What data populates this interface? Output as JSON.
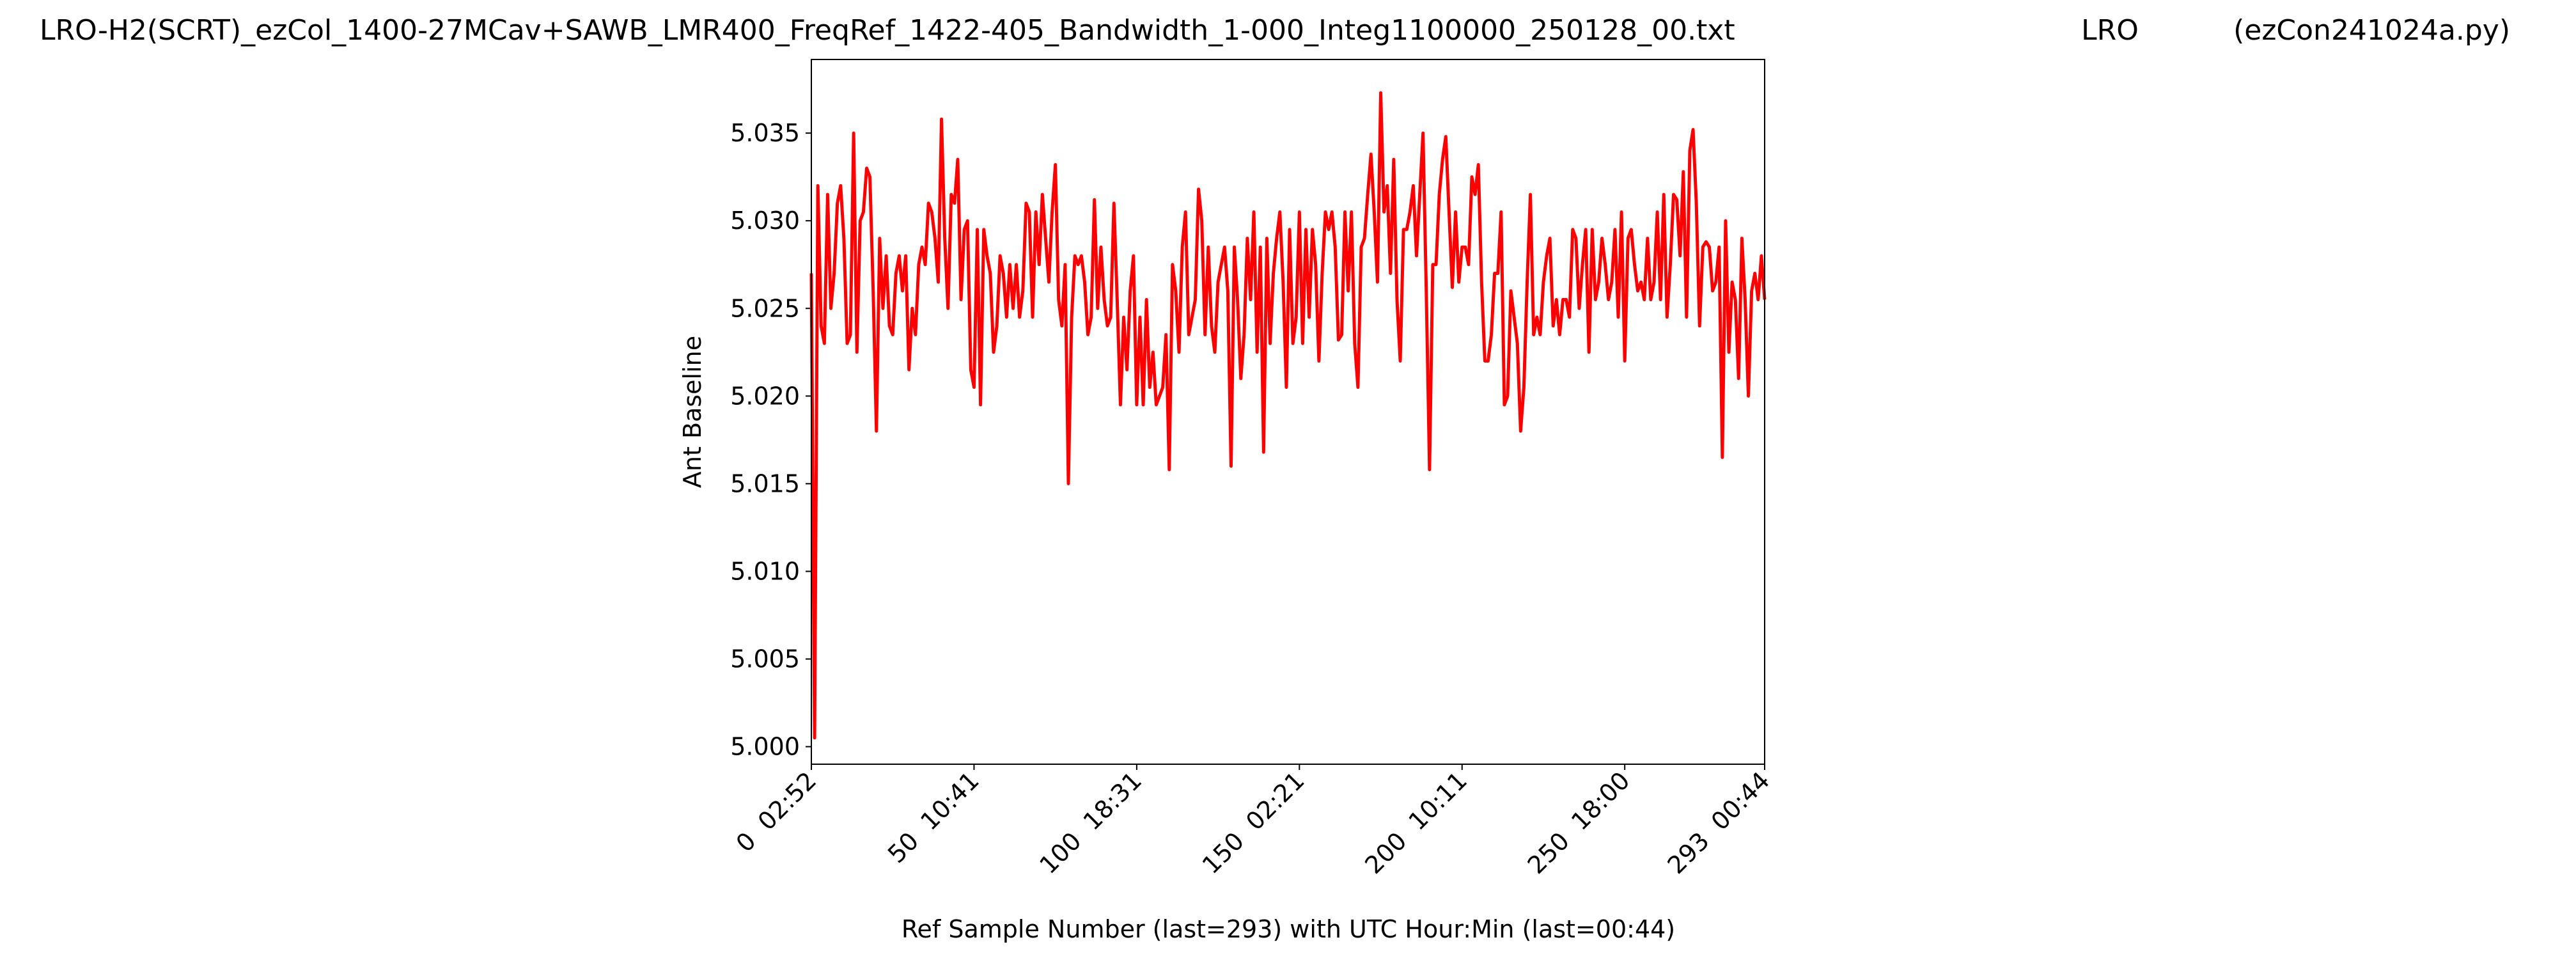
{
  "chart_data": {
    "type": "line",
    "title": "LRO-H2(SCRT)_ezCol_1400-27MCav+SAWB_LMR400_FreqRef_1422-405_Bandwidth_1-000_Integ1100000_250128_00.txt",
    "annotations": [
      "LRO",
      "(ezCon241024a.py)"
    ],
    "x_label": "Ref Sample Number (last=293) with UTC Hour:Min (last=00:44)",
    "y_label": "Ant Baseline",
    "xlim": [
      0,
      293
    ],
    "ylim": [
      4.999,
      5.0392
    ],
    "xticks": [
      {
        "value": 0,
        "label": "0  02:52"
      },
      {
        "value": 50,
        "label": "50  10:41"
      },
      {
        "value": 100,
        "label": "100  18:31"
      },
      {
        "value": 150,
        "label": "150  02:21"
      },
      {
        "value": 200,
        "label": "200  10:11"
      },
      {
        "value": 250,
        "label": "250  18:00"
      },
      {
        "value": 293,
        "label": "293  00:44"
      }
    ],
    "yticks": [
      {
        "value": 5,
        "label": "5.000"
      },
      5.005,
      {
        "value": 5.01,
        "label": "5.010"
      },
      5.015,
      {
        "value": 5.02,
        "label": "5.020"
      },
      5.025,
      {
        "value": 5.03,
        "label": "5.030"
      },
      5.035
    ],
    "grid": false,
    "series": [
      {
        "color": "#ff0000",
        "values": [
          5.027,
          5.0005,
          5.032,
          5.024,
          5.023,
          5.0315,
          5.025,
          5.027,
          5.031,
          5.032,
          5.029,
          5.023,
          5.0235,
          5.035,
          5.0225,
          5.03,
          5.0305,
          5.033,
          5.0325,
          5.026,
          5.018,
          5.029,
          5.025,
          5.028,
          5.024,
          5.0235,
          5.027,
          5.028,
          5.026,
          5.028,
          5.0215,
          5.025,
          5.0235,
          5.0275,
          5.0285,
          5.0275,
          5.031,
          5.0305,
          5.029,
          5.0265,
          5.0358,
          5.029,
          5.025,
          5.0315,
          5.031,
          5.0335,
          5.0255,
          5.0295,
          5.03,
          5.0215,
          5.0205,
          5.0295,
          5.0195,
          5.0295,
          5.028,
          5.027,
          5.0225,
          5.024,
          5.028,
          5.027,
          5.0245,
          5.0275,
          5.025,
          5.0275,
          5.0245,
          5.026,
          5.031,
          5.0305,
          5.0245,
          5.0305,
          5.0275,
          5.0315,
          5.029,
          5.0265,
          5.0305,
          5.0332,
          5.0255,
          5.024,
          5.0275,
          5.015,
          5.0245,
          5.028,
          5.0275,
          5.028,
          5.0265,
          5.0235,
          5.0245,
          5.0312,
          5.025,
          5.0285,
          5.0255,
          5.024,
          5.0245,
          5.031,
          5.0255,
          5.0195,
          5.0245,
          5.0215,
          5.026,
          5.028,
          5.0195,
          5.0245,
          5.0195,
          5.0255,
          5.0205,
          5.0225,
          5.0195,
          5.02,
          5.0205,
          5.0235,
          5.0158,
          5.0275,
          5.026,
          5.0225,
          5.0285,
          5.0305,
          5.0235,
          5.0245,
          5.0255,
          5.0318,
          5.03,
          5.0235,
          5.0285,
          5.024,
          5.0225,
          5.0265,
          5.0275,
          5.0285,
          5.026,
          5.016,
          5.0285,
          5.0255,
          5.021,
          5.0235,
          5.029,
          5.0255,
          5.0305,
          5.0225,
          5.0285,
          5.0168,
          5.029,
          5.023,
          5.027,
          5.029,
          5.0305,
          5.0265,
          5.0205,
          5.0295,
          5.023,
          5.0245,
          5.0305,
          5.023,
          5.0295,
          5.0245,
          5.0295,
          5.0275,
          5.022,
          5.027,
          5.0305,
          5.0295,
          5.0305,
          5.0285,
          5.0232,
          5.0235,
          5.0305,
          5.026,
          5.0305,
          5.023,
          5.0205,
          5.0285,
          5.029,
          5.0315,
          5.0338,
          5.0305,
          5.0265,
          5.0373,
          5.0305,
          5.032,
          5.027,
          5.0335,
          5.0255,
          5.022,
          5.0295,
          5.0295,
          5.0305,
          5.032,
          5.028,
          5.0315,
          5.035,
          5.026,
          5.0158,
          5.0275,
          5.0275,
          5.0315,
          5.0335,
          5.0348,
          5.0305,
          5.0262,
          5.0305,
          5.0265,
          5.0285,
          5.0285,
          5.0275,
          5.0325,
          5.0315,
          5.0332,
          5.0265,
          5.022,
          5.022,
          5.0235,
          5.027,
          5.027,
          5.0305,
          5.0195,
          5.02,
          5.026,
          5.0245,
          5.023,
          5.018,
          5.0205,
          5.0265,
          5.0315,
          5.0235,
          5.0245,
          5.0235,
          5.0265,
          5.028,
          5.029,
          5.024,
          5.0255,
          5.0235,
          5.0255,
          5.0255,
          5.0245,
          5.0295,
          5.029,
          5.025,
          5.0275,
          5.0295,
          5.0225,
          5.0295,
          5.0255,
          5.0265,
          5.029,
          5.0275,
          5.0255,
          5.0265,
          5.0295,
          5.0245,
          5.0305,
          5.022,
          5.029,
          5.0295,
          5.0275,
          5.026,
          5.0265,
          5.0255,
          5.029,
          5.0255,
          5.0265,
          5.0305,
          5.0255,
          5.0315,
          5.0245,
          5.0275,
          5.0315,
          5.0312,
          5.028,
          5.0328,
          5.0245,
          5.034,
          5.0352,
          5.031,
          5.024,
          5.0285,
          5.0288,
          5.0285,
          5.026,
          5.0265,
          5.0285,
          5.0165,
          5.03,
          5.0225,
          5.0265,
          5.0255,
          5.021,
          5.029,
          5.0255,
          5.02,
          5.026,
          5.027,
          5.0255,
          5.028,
          5.0255
        ]
      }
    ]
  }
}
